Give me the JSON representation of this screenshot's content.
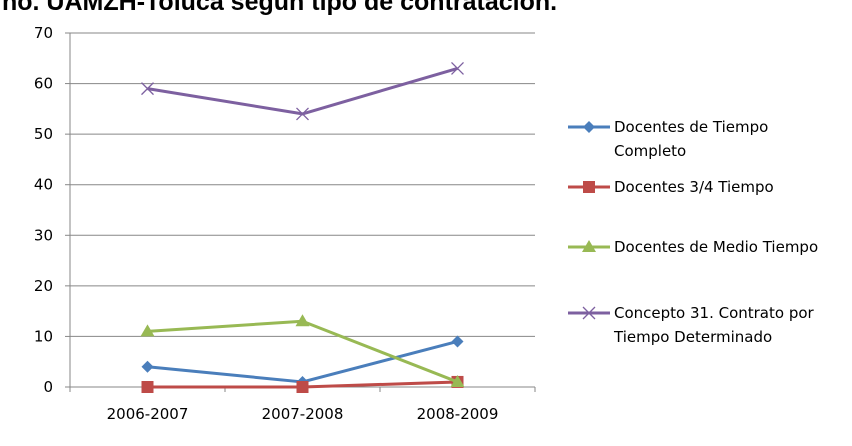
{
  "chart_data": {
    "type": "line",
    "title": "ño. UAMZH-Toluca según tipo de contratación.",
    "xlabel": "",
    "ylabel": "",
    "categories": [
      "2006-2007",
      "2007-2008",
      "2008-2009"
    ],
    "ylim": [
      0,
      70
    ],
    "yticks": [
      0,
      10,
      20,
      30,
      40,
      50,
      60,
      70
    ],
    "grid": true,
    "legend_position": "right",
    "series": [
      {
        "name_lines": [
          "Docentes de Tiempo",
          "Completo"
        ],
        "values": [
          4,
          1,
          9
        ],
        "color": "#4a7ebb",
        "marker": "diamond"
      },
      {
        "name_lines": [
          "Docentes 3/4 Tiempo"
        ],
        "values": [
          0,
          0,
          1
        ],
        "color": "#be4b48",
        "marker": "square"
      },
      {
        "name_lines": [
          "Docentes de Medio Tiempo"
        ],
        "values": [
          11,
          13,
          1
        ],
        "color": "#98b954",
        "marker": "triangle"
      },
      {
        "name_lines": [
          "Concepto 31. Contrato por",
          "Tiempo Determinado"
        ],
        "values": [
          59,
          54,
          63
        ],
        "color": "#7d60a0",
        "marker": "x"
      }
    ]
  }
}
